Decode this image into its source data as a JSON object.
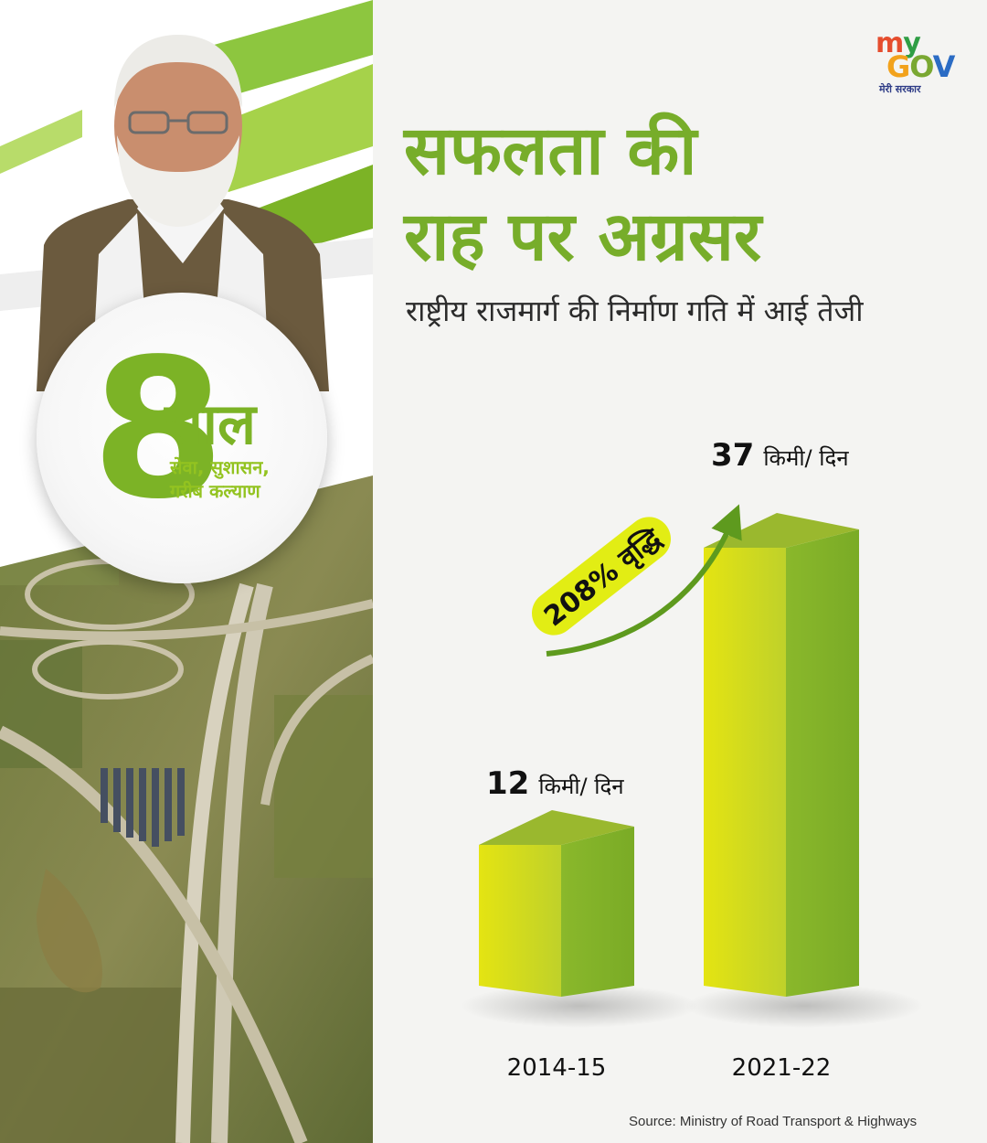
{
  "logo": {
    "my": "my",
    "gov": "GOV",
    "tagline": "मेरी सरकार"
  },
  "badge": {
    "number": "8",
    "word": "साल",
    "subtitle": "सेवा, सुशासन,\nगरीब कल्याण"
  },
  "title": "सफलता की\nराह पर अग्रसर",
  "subtitle": "राष्ट्रीय राजमार्ग की निर्माण गति में आई तेजी",
  "source": "Source: Ministry of Road Transport & Highways",
  "colors": {
    "accent_green": "#77ad2a",
    "bar_yellow": "#d8df1a",
    "bar_green": "#8ab82b",
    "pill_yellow": "#e2ed14"
  },
  "chart_data": {
    "type": "bar",
    "categories": [
      "2014-15",
      "2021-22"
    ],
    "values": [
      12,
      37
    ],
    "value_unit": "किमी/ दिन",
    "growth_label": "208% वृद्धि",
    "ylim": [
      0,
      40
    ],
    "grid": false,
    "legend": "none"
  }
}
